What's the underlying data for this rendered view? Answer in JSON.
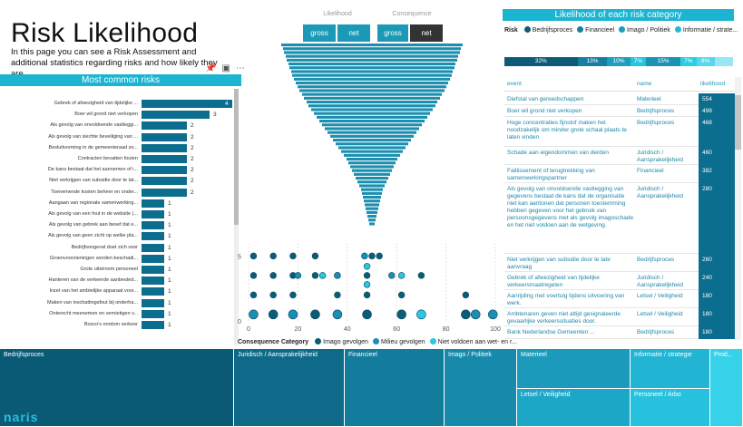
{
  "page": {
    "title": "Risk Likelihood",
    "subtitle": "In this page you can see a Risk Assessment and additional statistics regarding risks and how likely they are",
    "logo_text": "naris"
  },
  "visual_icons": [
    "pin-icon",
    "focus-icon",
    "more-icon"
  ],
  "common_risks": {
    "header": "Most common risks",
    "chart_data": {
      "type": "bar",
      "title": "Most common risks",
      "categories": [
        "Gebrek of afwezigheid van tijdelijke ...",
        "Boer wil grond niet verkopen",
        "Als gevolg van onvoldoende vastleggi...",
        "Als gevolg van slechte beveiliging van ...",
        "Besluitvorming in de gemeenteraad zo...",
        "Contracten bevatten fouten",
        "De kans bestaat dat het aannemen of i...",
        "Niet verkrijgen van subsidie door te lat...",
        "Toenemende kosten beheer en onder...",
        "Aangaan van regionale samenwerking...",
        "Als gevolg van een fout in de website (...",
        "Als gevolg van gebrek aan besef dat e...",
        "Als gevolg van geen zicht op welke pla...",
        "Bedrijfsongeval doet zich voor",
        "Groenvoorzieningen worden beschadi...",
        "Grote uitstroom personeel",
        "Hanteren van de verkeerde aanbested...",
        "Inzet van het ambtelijke apparaat voor...",
        "Maken van inschattingsfout bij onderha...",
        "Onterecht meenemen en vernietigen v...",
        "Bosco's rondom verkeer"
      ],
      "values": [
        4,
        3,
        2,
        2,
        2,
        2,
        2,
        2,
        2,
        1,
        1,
        1,
        1,
        1,
        1,
        1,
        1,
        1,
        1,
        1,
        1
      ],
      "xlim": [
        0,
        4
      ],
      "bar_color": "#0c6e8e"
    }
  },
  "slicers": {
    "likelihood": {
      "label": "Likelihood",
      "options": [
        "gross",
        "net"
      ]
    },
    "consequence": {
      "label": "Consequence",
      "options": [
        "gross",
        "net"
      ],
      "selected": "net"
    }
  },
  "funnel": {
    "chart_data": {
      "type": "bar",
      "orientation": "horizontal-centered",
      "values": [
        100,
        98,
        97,
        95,
        94,
        92,
        91,
        89,
        88,
        86,
        84,
        82,
        80,
        77,
        75,
        72,
        70,
        67,
        64,
        61,
        58,
        55,
        52,
        49,
        46,
        43,
        40,
        37,
        34,
        31,
        28,
        26,
        24,
        22,
        20,
        18,
        16,
        14,
        12,
        11,
        10,
        9,
        8,
        7,
        6,
        5,
        4,
        3
      ],
      "color": "#1b8fb0"
    }
  },
  "scatter": {
    "legend_title": "Consequence Category",
    "legend": [
      {
        "name": "Imago gevolgen",
        "color": "#0c5c78"
      },
      {
        "name": "Milieu gevolgen",
        "color": "#1a8fb3"
      },
      {
        "name": "Niet voldoen aan wet- en r...",
        "color": "#2bc8e0"
      }
    ],
    "chart_data": {
      "type": "scatter",
      "x_ticks": [
        "0",
        "20",
        "40",
        "60",
        "80",
        "100"
      ],
      "y_ticks": [
        "0",
        "5"
      ],
      "xlim": [
        0,
        100
      ],
      "ylim": [
        0,
        6
      ],
      "series": [
        {
          "name": "Imago gevolgen",
          "points": [
            [
              2,
              5
            ],
            [
              10,
              5
            ],
            [
              18,
              5
            ],
            [
              27,
              5
            ],
            [
              50,
              5
            ],
            [
              53,
              5
            ],
            [
              2,
              3.5
            ],
            [
              10,
              3.5
            ],
            [
              18,
              3.5
            ],
            [
              27,
              3.5
            ],
            [
              36,
              3.5
            ],
            [
              48,
              3.5
            ],
            [
              70,
              3.5
            ],
            [
              2,
              2
            ],
            [
              10,
              2
            ],
            [
              18,
              2
            ],
            [
              36,
              2
            ],
            [
              48,
              2
            ],
            [
              62,
              2
            ],
            [
              88,
              2
            ],
            [
              10,
              0.5
            ],
            [
              27,
              0.5
            ],
            [
              48,
              0.5
            ],
            [
              62,
              0.5
            ],
            [
              88,
              0.5
            ]
          ]
        },
        {
          "name": "Milieu gevolgen",
          "points": [
            [
              47,
              5
            ],
            [
              20,
              3.5
            ],
            [
              36,
              3.5
            ],
            [
              58,
              3.5
            ],
            [
              2,
              0.5
            ],
            [
              18,
              0.5
            ],
            [
              36,
              0.5
            ],
            [
              92,
              0.5
            ],
            [
              99,
              0.5
            ]
          ]
        },
        {
          "name": "Niet voldoen aan wet- en r...",
          "points": [
            [
              48,
              4.2
            ],
            [
              48,
              2.8
            ],
            [
              30,
              3.5
            ],
            [
              62,
              3.5
            ],
            [
              70,
              0.5
            ]
          ]
        }
      ]
    }
  },
  "category_likelihood": {
    "header": "Likelihood of each risk category",
    "legend_label": "Risk",
    "legend": [
      {
        "name": "Bedrijfsproces",
        "color": "#0c5c78"
      },
      {
        "name": "Financieel",
        "color": "#167fa1"
      },
      {
        "name": "Imago / Politiek",
        "color": "#1d9ec0"
      },
      {
        "name": "Informatie / strate...",
        "color": "#25b9d6"
      }
    ],
    "chart_data": {
      "type": "bar",
      "orientation": "stacked-100",
      "values": [
        32,
        13,
        10,
        7,
        15,
        7,
        8,
        8
      ],
      "labels": [
        "32%",
        "13%",
        "10%",
        "7%",
        "15%",
        "7%",
        "8%",
        ""
      ],
      "colors": [
        "#0c5c78",
        "#167fa1",
        "#1d9ec0",
        "#25c4e0",
        "#1a93b5",
        "#2bcde6",
        "#55d7ec",
        "#9be6f3"
      ]
    }
  },
  "risk_table": {
    "columns": [
      "event",
      "name",
      "likelihood"
    ],
    "rows": [
      {
        "event": "Diefstal van gereedschappen",
        "name": "Materieel",
        "likelihood": "554"
      },
      {
        "event": "Boer wil grond niet verkopen",
        "name": "Bedrijfsproces",
        "likelihood": "498"
      },
      {
        "event": "Hoge concentraties fijnstof maken het noodzakelijk om minder grote schaal plaats te laten vinden",
        "name": "Bedrijfsproces",
        "likelihood": "468"
      },
      {
        "event": "Schade aan eigendommen van derden",
        "name": "Juridisch / Aansprakelijkheid",
        "likelihood": "460"
      },
      {
        "event": "Faillissement of terugtrekking van samenwerkingspartner",
        "name": "Financieel",
        "likelihood": "382"
      },
      {
        "event": "Als gevolg van onvoldoende vastlegging van gegevens bestaat de kans dat de organisatie niet kan aantonen dat personen toestemming hebben gegeven voor het gebruik van persoonsgegevens met als gevolg imagoschade en het niet voldoen aan de wetgeving.",
        "name": "Juridisch / Aansprakelijkheid",
        "likelihood": "280"
      },
      {
        "event": "Niet verkrijgen van subsidie door te late aanvraag",
        "name": "Bedrijfsproces",
        "likelihood": "260"
      },
      {
        "event": "Gebrek of afwezigheid van tijdelijke verkeersmaatregelen",
        "name": "Juridisch / Aansprakelijkheid",
        "likelihood": "240"
      },
      {
        "event": "Aanrijding met voertuig tijdens uitvoering van werk.",
        "name": "Letsel / Veiligheid",
        "likelihood": "180"
      },
      {
        "event": "Ambtenaren geven niet altijd gesignaleerde gevaarlijke verkeerssituaties door.",
        "name": "Letsel / Veiligheid",
        "likelihood": "180"
      },
      {
        "event": "Bank Nederlandse Gemeenten ...",
        "name": "Bedrijfsproces",
        "likelihood": "180"
      }
    ]
  },
  "treemap": {
    "tiles": [
      {
        "label": "Bedrijfsproces",
        "color": "#0a5a76"
      },
      {
        "label": "Juridisch / Aansprakelijkheid",
        "color": "#0e6a88"
      },
      {
        "label": "Financieel",
        "color": "#137b9b"
      },
      {
        "label": "Imago / Politiek",
        "color": "#178aab"
      },
      {
        "label": "Materieel",
        "color": "#1b9abb"
      },
      {
        "label": "Letsel / Veiligheid",
        "color": "#1da7c7"
      },
      {
        "label": "Informatie / strategie",
        "color": "#21b5d3"
      },
      {
        "label": "Personeel / Arbo",
        "color": "#26c1dd"
      },
      {
        "label": "Prod...",
        "color": "#35d2ea"
      }
    ]
  }
}
